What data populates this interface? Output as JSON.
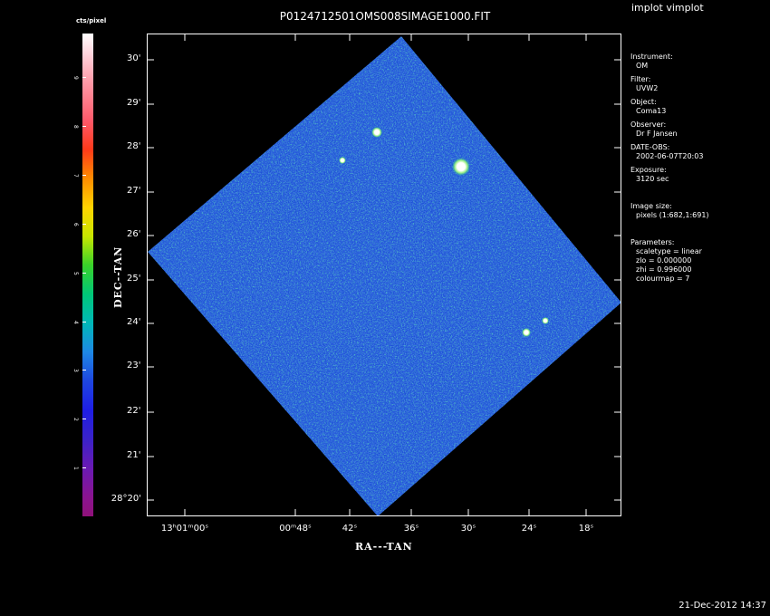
{
  "app_name": "implot vimplot",
  "title": "P0124712501OMS008SIMAGE1000.FIT",
  "datestamp": "21-Dec-2012 14:37",
  "colorbar": {
    "label": "cts/pixel",
    "ticks": [
      "1",
      "2",
      "3",
      "4",
      "5",
      "6",
      "7",
      "8",
      "9"
    ]
  },
  "axes": {
    "x_title": "RA---TAN",
    "y_title": "DEC--TAN",
    "y_ticks": [
      "30'",
      "29'",
      "28'",
      "27'",
      "26'",
      "25'",
      "24'",
      "23'",
      "22'",
      "21'",
      "28°20'"
    ],
    "x_ticks": [
      "13ʰ01ᵐ00ˢ",
      "00ᵐ48ˢ",
      "42ˢ",
      "36ˢ",
      "30ˢ",
      "24ˢ",
      "18ˢ"
    ]
  },
  "info": {
    "instrument_label": "Instrument:",
    "instrument": "OM",
    "filter_label": "Filter:",
    "filter": "UVW2",
    "object_label": "Object:",
    "object": "Coma13",
    "observer_label": "Observer:",
    "observer": "Dr F Jansen",
    "date_label": "DATE-OBS:",
    "date": "2002-06-07T20:03",
    "exposure_label": "Exposure:",
    "exposure": "3120 sec",
    "image_size_label": "Image size:",
    "image_size": "pixels (1:682,1:691)",
    "parameters_label": "Parameters:",
    "scaletype": "scaletype = linear",
    "zlo": "zlo = 0.000000",
    "zhi": "zhi = 0.996000",
    "colourmap": "colourmap =   7"
  },
  "colors": {
    "image_base": "#1f4fe0",
    "noise_hi": "#1bd07a",
    "noise_cyan": "#1fb6d6"
  }
}
